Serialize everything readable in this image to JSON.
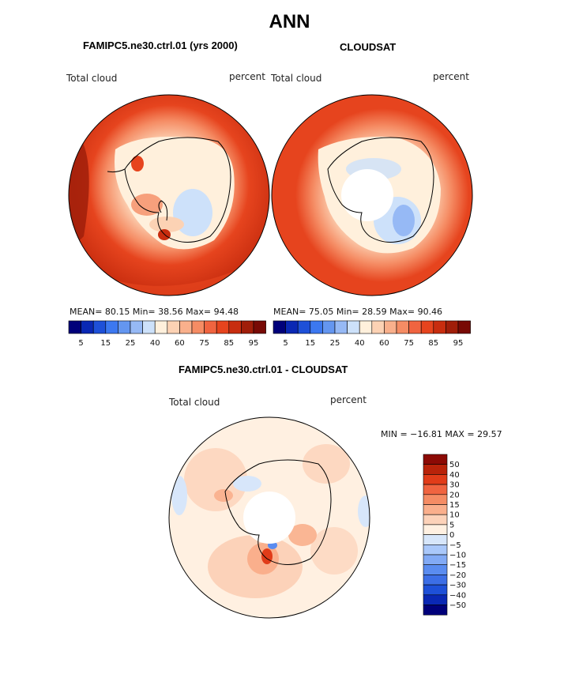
{
  "main_title": "ANN",
  "panels": [
    {
      "title": "FAMIPC5.ne30.ctrl.01 (yrs 2000)",
      "left_label": "Total cloud",
      "right_label": "percent",
      "stats": "MEAN=  80.15  Min=  38.56  Max=  94.48"
    },
    {
      "title": "CLOUDSAT",
      "left_label": "Total cloud",
      "right_label": "percent",
      "stats": "MEAN=  75.05  Min=  28.59  Max=  90.46"
    },
    {
      "title": "FAMIPC5.ne30.ctrl.01 - CLOUDSAT",
      "left_label": "Total cloud",
      "right_label": "percent",
      "stats": "MIN = −16.81 MAX =   29.57"
    }
  ],
  "colorbar_abs": {
    "colors": [
      "#00007a",
      "#0a28b4",
      "#1e50d8",
      "#3c78f0",
      "#6496f0",
      "#96b9f5",
      "#cde1fa",
      "#fff0dc",
      "#fcd2b4",
      "#f9b08c",
      "#f58c64",
      "#f06440",
      "#e6441e",
      "#c82d0f",
      "#a01e0a",
      "#780a05"
    ],
    "tick_labels": [
      "5",
      "15",
      "25",
      "40",
      "60",
      "75",
      "85",
      "95"
    ]
  },
  "colorbar_diff": {
    "colors": [
      "#00007a",
      "#0a28b4",
      "#1e50d8",
      "#3c6ee6",
      "#5a8cf0",
      "#82aaf5",
      "#aac8fa",
      "#d7e6fa",
      "#fff0e1",
      "#fcd2b9",
      "#faaf8c",
      "#f58c64",
      "#f06440",
      "#e13c19",
      "#b9230a",
      "#8c0a05"
    ],
    "tick_labels": [
      "50",
      "40",
      "30",
      "20",
      "15",
      "10",
      "5",
      "0",
      "−5",
      "−10",
      "−15",
      "−20",
      "−30",
      "−40",
      "−50"
    ]
  }
}
